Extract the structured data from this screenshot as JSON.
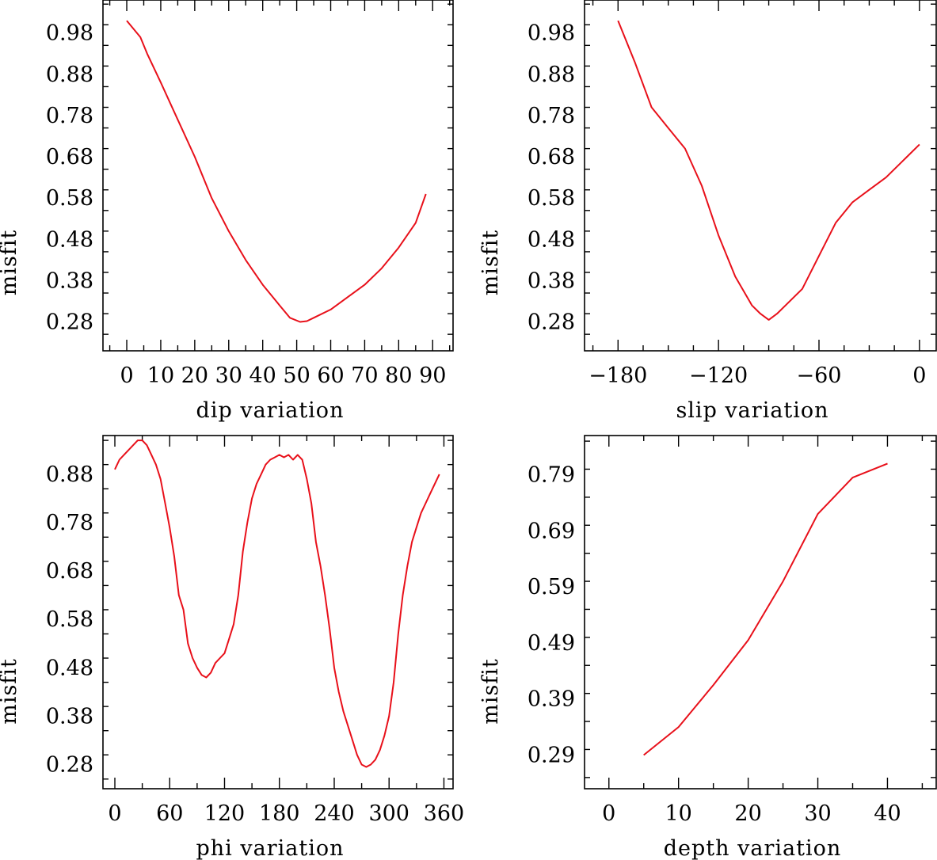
{
  "chart_data": [
    {
      "type": "line",
      "xlabel": "dip     variation",
      "ylabel": "misfit",
      "xlim": [
        -7,
        96
      ],
      "ylim": [
        0.21,
        1.06
      ],
      "xticks": [
        0,
        10,
        20,
        30,
        40,
        50,
        60,
        70,
        80,
        90
      ],
      "xtick_labels": [
        "0",
        "10",
        "20",
        "30",
        "40",
        "50",
        "60",
        "70",
        "80",
        "90"
      ],
      "xminor_step": 5,
      "yticks": [
        0.28,
        0.38,
        0.48,
        0.58,
        0.68,
        0.78,
        0.88,
        0.98
      ],
      "ytick_labels": [
        "0.28",
        "0.38",
        "0.48",
        "0.58",
        "0.68",
        "0.78",
        "0.88",
        "0.98"
      ],
      "yminor_step": 0.05,
      "series": [
        {
          "name": "dip",
          "color": "#e8101a",
          "x": [
            0,
            2,
            4,
            6,
            10,
            15,
            20,
            25,
            30,
            35,
            40,
            45,
            48,
            51,
            53,
            55,
            60,
            65,
            70,
            75,
            80,
            85,
            88
          ],
          "y": [
            1.01,
            0.99,
            0.97,
            0.93,
            0.86,
            0.77,
            0.68,
            0.58,
            0.5,
            0.43,
            0.37,
            0.32,
            0.29,
            0.28,
            0.282,
            0.29,
            0.31,
            0.34,
            0.37,
            0.41,
            0.46,
            0.52,
            0.59
          ]
        }
      ]
    },
    {
      "type": "line",
      "xlabel": "slip    variation",
      "ylabel": "misfit",
      "xlim": [
        -200,
        10
      ],
      "ylim": [
        0.21,
        1.06
      ],
      "xticks": [
        -180,
        -120,
        -60,
        0
      ],
      "xtick_labels": [
        "−180",
        "−120",
        "−60",
        "0"
      ],
      "xminor_step": 15,
      "yticks": [
        0.28,
        0.38,
        0.48,
        0.58,
        0.68,
        0.78,
        0.88,
        0.98
      ],
      "ytick_labels": [
        "0.28",
        "0.38",
        "0.48",
        "0.58",
        "0.68",
        "0.78",
        "0.88",
        "0.98"
      ],
      "yminor_step": 0.05,
      "series": [
        {
          "name": "slip",
          "color": "#e8101a",
          "x": [
            -180,
            -170,
            -160,
            -150,
            -140,
            -130,
            -120,
            -110,
            -100,
            -95,
            -90,
            -85,
            -80,
            -70,
            -60,
            -50,
            -40,
            -30,
            -20,
            -10,
            0
          ],
          "y": [
            1.01,
            0.91,
            0.8,
            0.75,
            0.7,
            0.61,
            0.49,
            0.39,
            0.32,
            0.3,
            0.285,
            0.3,
            0.32,
            0.36,
            0.44,
            0.52,
            0.57,
            0.6,
            0.63,
            0.67,
            0.71
          ]
        }
      ]
    },
    {
      "type": "line",
      "xlabel": "phi     variation",
      "ylabel": "misfit",
      "xlim": [
        -13,
        370
      ],
      "ylim": [
        0.23,
        0.96
      ],
      "xticks": [
        0,
        60,
        120,
        180,
        240,
        300,
        360
      ],
      "xtick_labels": [
        "0",
        "60",
        "120",
        "180",
        "240",
        "300",
        "360"
      ],
      "xminor_step": 30,
      "yticks": [
        0.28,
        0.38,
        0.48,
        0.58,
        0.68,
        0.78,
        0.88
      ],
      "ytick_labels": [
        "0.28",
        "0.38",
        "0.48",
        "0.58",
        "0.68",
        "0.78",
        "0.88"
      ],
      "yminor_step": 0.05,
      "series": [
        {
          "name": "phi",
          "color": "#e8101a",
          "x": [
            0,
            5,
            10,
            15,
            20,
            25,
            30,
            35,
            40,
            45,
            50,
            55,
            60,
            65,
            70,
            75,
            80,
            85,
            90,
            95,
            100,
            105,
            110,
            115,
            120,
            125,
            130,
            135,
            140,
            145,
            150,
            155,
            160,
            165,
            170,
            175,
            180,
            185,
            190,
            195,
            200,
            205,
            210,
            215,
            220,
            225,
            230,
            235,
            240,
            245,
            250,
            255,
            260,
            265,
            270,
            275,
            280,
            285,
            290,
            295,
            300,
            305,
            310,
            315,
            320,
            325,
            330,
            335,
            340,
            345,
            355
          ],
          "y": [
            0.89,
            0.91,
            0.92,
            0.93,
            0.94,
            0.95,
            0.95,
            0.94,
            0.92,
            0.9,
            0.87,
            0.82,
            0.77,
            0.71,
            0.63,
            0.6,
            0.53,
            0.5,
            0.48,
            0.465,
            0.46,
            0.47,
            0.49,
            0.5,
            0.51,
            0.54,
            0.57,
            0.63,
            0.72,
            0.78,
            0.83,
            0.86,
            0.88,
            0.9,
            0.91,
            0.915,
            0.92,
            0.915,
            0.92,
            0.91,
            0.92,
            0.91,
            0.87,
            0.82,
            0.74,
            0.69,
            0.63,
            0.56,
            0.48,
            0.43,
            0.39,
            0.36,
            0.33,
            0.3,
            0.28,
            0.275,
            0.28,
            0.29,
            0.31,
            0.34,
            0.38,
            0.45,
            0.55,
            0.63,
            0.69,
            0.74,
            0.77,
            0.8,
            0.82,
            0.84,
            0.88
          ]
        }
      ]
    },
    {
      "type": "line",
      "xlabel": "depth   variation",
      "ylabel": "misfit",
      "xlim": [
        -3.5,
        47
      ],
      "ylim": [
        0.23,
        0.86
      ],
      "xticks": [
        0,
        10,
        20,
        30,
        40
      ],
      "xtick_labels": [
        "0",
        "10",
        "20",
        "30",
        "40"
      ],
      "xminor_step": 5,
      "yticks": [
        0.29,
        0.39,
        0.49,
        0.59,
        0.69,
        0.79
      ],
      "ytick_labels": [
        "0.29",
        "0.39",
        "0.49",
        "0.59",
        "0.69",
        "0.79"
      ],
      "yminor_step": 0.05,
      "series": [
        {
          "name": "depth",
          "color": "#e8101a",
          "x": [
            5,
            10,
            15,
            20,
            25,
            30,
            35,
            40
          ],
          "y": [
            0.29,
            0.34,
            0.415,
            0.495,
            0.6,
            0.72,
            0.785,
            0.81
          ]
        }
      ]
    }
  ]
}
